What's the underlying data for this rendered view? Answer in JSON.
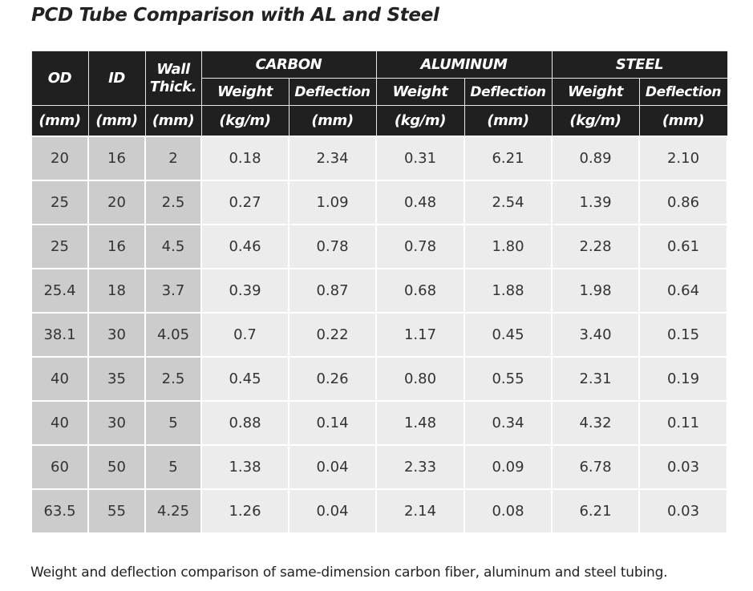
{
  "title": "PCD Tube Comparison with AL and Steel",
  "headers": {
    "od": "OD",
    "id": "ID",
    "wall_line1": "Wall",
    "wall_line2": "Thick.",
    "carbon": "CARBON",
    "aluminum": "ALUMINUM",
    "steel": "STEEL",
    "weight": "Weight",
    "deflection": "Deflection",
    "unit_mm": "(mm)",
    "unit_kgm": "(kg/m)"
  },
  "rows": [
    {
      "od": "20",
      "id": "16",
      "wall": "2",
      "c_w": "0.18",
      "c_d": "2.34",
      "a_w": "0.31",
      "a_d": "6.21",
      "s_w": "0.89",
      "s_d": "2.10"
    },
    {
      "od": "25",
      "id": "20",
      "wall": "2.5",
      "c_w": "0.27",
      "c_d": "1.09",
      "a_w": "0.48",
      "a_d": "2.54",
      "s_w": "1.39",
      "s_d": "0.86"
    },
    {
      "od": "25",
      "id": "16",
      "wall": "4.5",
      "c_w": "0.46",
      "c_d": "0.78",
      "a_w": "0.78",
      "a_d": "1.80",
      "s_w": "2.28",
      "s_d": "0.61"
    },
    {
      "od": "25.4",
      "id": "18",
      "wall": "3.7",
      "c_w": "0.39",
      "c_d": "0.87",
      "a_w": "0.68",
      "a_d": "1.88",
      "s_w": "1.98",
      "s_d": "0.64"
    },
    {
      "od": "38.1",
      "id": "30",
      "wall": "4.05",
      "c_w": "0.7",
      "c_d": "0.22",
      "a_w": "1.17",
      "a_d": "0.45",
      "s_w": "3.40",
      "s_d": "0.15"
    },
    {
      "od": "40",
      "id": "35",
      "wall": "2.5",
      "c_w": "0.45",
      "c_d": "0.26",
      "a_w": "0.80",
      "a_d": "0.55",
      "s_w": "2.31",
      "s_d": "0.19"
    },
    {
      "od": "40",
      "id": "30",
      "wall": "5",
      "c_w": "0.88",
      "c_d": "0.14",
      "a_w": "1.48",
      "a_d": "0.34",
      "s_w": "4.32",
      "s_d": "0.11"
    },
    {
      "od": "60",
      "id": "50",
      "wall": "5",
      "c_w": "1.38",
      "c_d": "0.04",
      "a_w": "2.33",
      "a_d": "0.09",
      "s_w": "6.78",
      "s_d": "0.03"
    },
    {
      "od": "63.5",
      "id": "55",
      "wall": "4.25",
      "c_w": "1.26",
      "c_d": "0.04",
      "a_w": "2.14",
      "a_d": "0.08",
      "s_w": "6.21",
      "s_d": "0.03"
    }
  ],
  "caption": "Weight and deflection comparison of same-dimension carbon fiber, aluminum and steel tubing.",
  "colors": {
    "header_bg": "#202020",
    "dim_cell_bg": "#cccccc",
    "value_cell_bg": "#ececec"
  }
}
